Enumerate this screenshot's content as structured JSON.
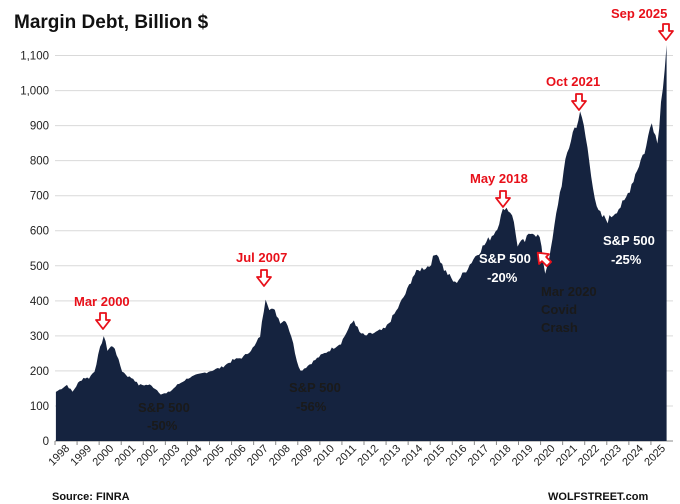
{
  "chart_data": {
    "type": "area",
    "title": "Margin Debt, Billion $",
    "xlabel": "",
    "ylabel": "",
    "ylim": [
      0,
      1150
    ],
    "yticks": [
      "0",
      "100",
      "200",
      "300",
      "400",
      "500",
      "600",
      "700",
      "800",
      "900",
      "1,000",
      "1,100"
    ],
    "xticks": [
      "1998",
      "1999",
      "2000",
      "2001",
      "2002",
      "2003",
      "2004",
      "2005",
      "2006",
      "2007",
      "2008",
      "2009",
      "2010",
      "2011",
      "2012",
      "2013",
      "2014",
      "2015",
      "2016",
      "2017",
      "2018",
      "2019",
      "2020",
      "2021",
      "2022",
      "2023",
      "2024",
      "2025"
    ],
    "grid": true,
    "fill_color": "#15233f",
    "annotation_color": "#e8101a",
    "series": [
      {
        "points": [
          [
            "1998-01",
            140
          ],
          [
            "1998-04",
            150
          ],
          [
            "1998-07",
            160
          ],
          [
            "1998-10",
            140
          ],
          [
            "1999-01",
            165
          ],
          [
            "1999-04",
            180
          ],
          [
            "1999-07",
            180
          ],
          [
            "1999-10",
            200
          ],
          [
            "2000-01",
            265
          ],
          [
            "2000-03",
            300
          ],
          [
            "2000-05",
            260
          ],
          [
            "2000-07",
            270
          ],
          [
            "2000-09",
            265
          ],
          [
            "2000-11",
            230
          ],
          [
            "2001-01",
            200
          ],
          [
            "2001-04",
            185
          ],
          [
            "2001-07",
            178
          ],
          [
            "2001-10",
            160
          ],
          [
            "2002-01",
            160
          ],
          [
            "2002-04",
            160
          ],
          [
            "2002-07",
            150
          ],
          [
            "2002-10",
            135
          ],
          [
            "2003-01",
            135
          ],
          [
            "2003-04",
            145
          ],
          [
            "2003-07",
            160
          ],
          [
            "2003-10",
            170
          ],
          [
            "2004-01",
            180
          ],
          [
            "2004-07",
            190
          ],
          [
            "2005-01",
            200
          ],
          [
            "2005-07",
            210
          ],
          [
            "2006-01",
            230
          ],
          [
            "2006-07",
            240
          ],
          [
            "2007-01",
            270
          ],
          [
            "2007-04",
            300
          ],
          [
            "2007-07",
            410
          ],
          [
            "2007-09",
            380
          ],
          [
            "2007-12",
            370
          ],
          [
            "2008-03",
            340
          ],
          [
            "2008-06",
            345
          ],
          [
            "2008-09",
            300
          ],
          [
            "2008-12",
            230
          ],
          [
            "2009-02",
            200
          ],
          [
            "2009-06",
            215
          ],
          [
            "2009-12",
            240
          ],
          [
            "2010-06",
            260
          ],
          [
            "2010-12",
            280
          ],
          [
            "2011-04",
            320
          ],
          [
            "2011-07",
            345
          ],
          [
            "2011-10",
            310
          ],
          [
            "2012-01",
            300
          ],
          [
            "2012-07",
            310
          ],
          [
            "2012-12",
            320
          ],
          [
            "2013-06",
            370
          ],
          [
            "2013-12",
            430
          ],
          [
            "2014-03",
            470
          ],
          [
            "2014-07",
            490
          ],
          [
            "2014-12",
            500
          ],
          [
            "2015-04",
            540
          ],
          [
            "2015-08",
            490
          ],
          [
            "2016-02",
            450
          ],
          [
            "2016-07",
            480
          ],
          [
            "2016-12",
            520
          ],
          [
            "2017-06",
            560
          ],
          [
            "2017-12",
            600
          ],
          [
            "2018-03",
            640
          ],
          [
            "2018-05",
            670
          ],
          [
            "2018-09",
            650
          ],
          [
            "2018-12",
            560
          ],
          [
            "2019-04",
            570
          ],
          [
            "2019-08",
            600
          ],
          [
            "2019-12",
            580
          ],
          [
            "2020-03",
            480
          ],
          [
            "2020-06",
            540
          ],
          [
            "2020-10",
            680
          ],
          [
            "2021-03",
            820
          ],
          [
            "2021-06",
            880
          ],
          [
            "2021-10",
            930
          ],
          [
            "2021-12",
            900
          ],
          [
            "2022-03",
            800
          ],
          [
            "2022-07",
            660
          ],
          [
            "2022-10",
            640
          ],
          [
            "2023-01",
            630
          ],
          [
            "2023-06",
            660
          ],
          [
            "2023-10",
            680
          ],
          [
            "2024-01",
            720
          ],
          [
            "2024-06",
            790
          ],
          [
            "2024-10",
            840
          ],
          [
            "2025-01",
            920
          ],
          [
            "2025-04",
            850
          ],
          [
            "2025-07",
            1020
          ],
          [
            "2025-09",
            1130
          ]
        ]
      }
    ],
    "annotations": {
      "mar2000": "Mar 2000",
      "jul2007": "Jul 2007",
      "may2018": "May 2018",
      "oct2021": "Oct 2021",
      "sep2025": "Sep 2025",
      "covid_1": "Mar 2020",
      "covid_2": "Covid",
      "covid_3": "Crash",
      "sp_2002_1": "S&P 500",
      "sp_2002_2": "-50%",
      "sp_2009_1": "S&P 500",
      "sp_2009_2": "-56%",
      "sp_2018_1": "S&P 500",
      "sp_2018_2": "-20%",
      "sp_2022_1": "S&P 500",
      "sp_2022_2": "-25%"
    },
    "source": "Source: FINRA",
    "brand": "WOLFSTREET.com"
  }
}
